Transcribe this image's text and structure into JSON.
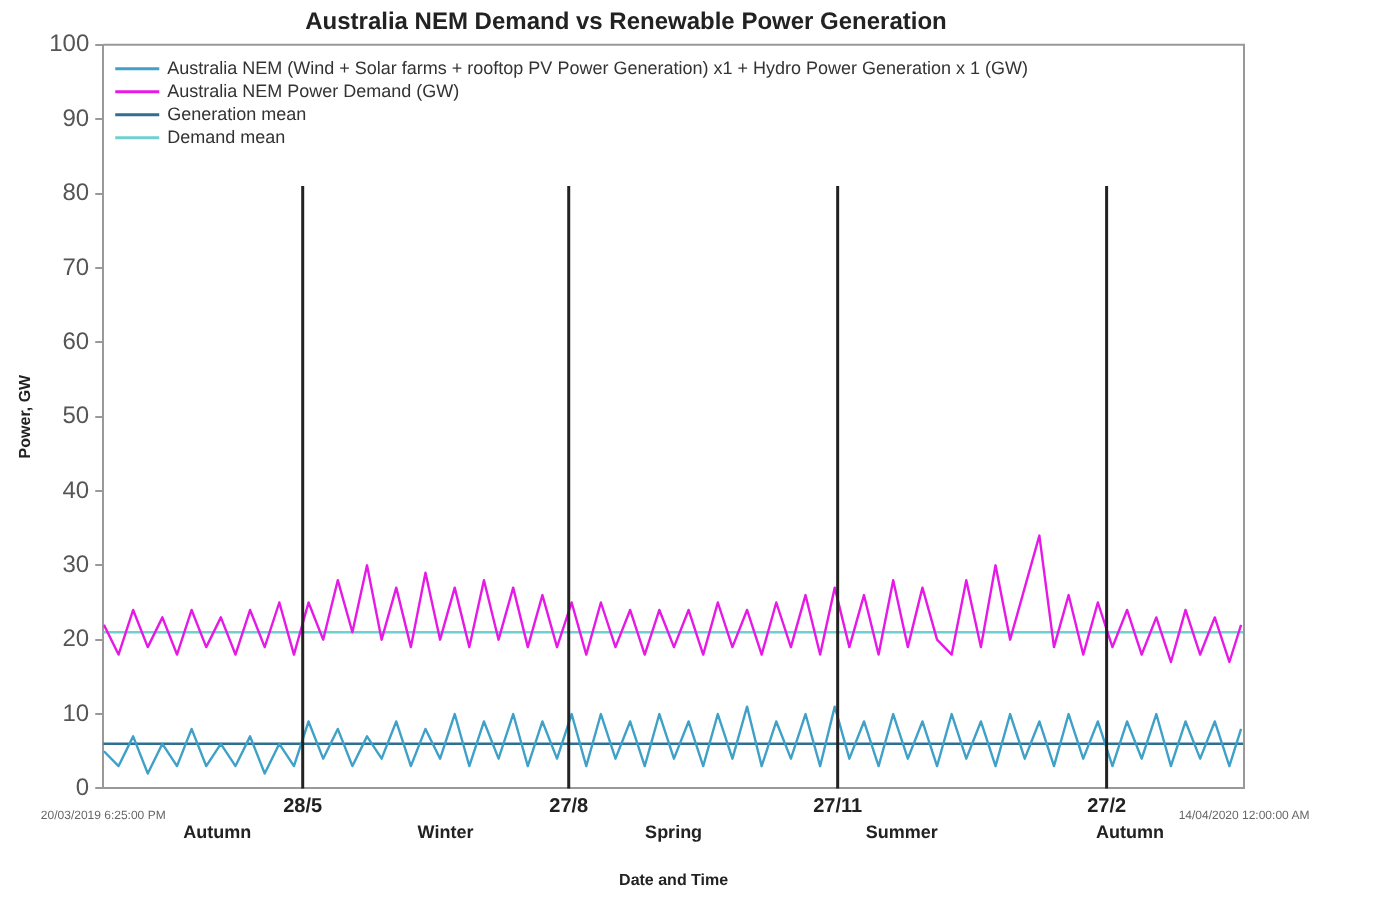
{
  "chart_data": {
    "type": "line",
    "title": "Australia NEM Demand vs Renewable Power Generation",
    "xlabel": "Date and Time",
    "ylabel": "Power, GW",
    "x": [
      "2019-03-21",
      "2019-03-26",
      "2019-03-31",
      "2019-04-05",
      "2019-04-10",
      "2019-04-15",
      "2019-04-20",
      "2019-04-25",
      "2019-04-30",
      "2019-05-05",
      "2019-05-10",
      "2019-05-15",
      "2019-05-20",
      "2019-05-25",
      "2019-05-30",
      "2019-06-04",
      "2019-06-09",
      "2019-06-14",
      "2019-06-19",
      "2019-06-24",
      "2019-06-29",
      "2019-07-04",
      "2019-07-09",
      "2019-07-14",
      "2019-07-19",
      "2019-07-24",
      "2019-07-29",
      "2019-08-03",
      "2019-08-08",
      "2019-08-13",
      "2019-08-18",
      "2019-08-23",
      "2019-08-28",
      "2019-09-02",
      "2019-09-07",
      "2019-09-12",
      "2019-09-17",
      "2019-09-22",
      "2019-09-27",
      "2019-10-02",
      "2019-10-07",
      "2019-10-12",
      "2019-10-17",
      "2019-10-22",
      "2019-10-27",
      "2019-11-01",
      "2019-11-06",
      "2019-11-11",
      "2019-11-16",
      "2019-11-21",
      "2019-11-26",
      "2019-12-01",
      "2019-12-06",
      "2019-12-11",
      "2019-12-16",
      "2019-12-21",
      "2019-12-26",
      "2019-12-31",
      "2020-01-05",
      "2020-01-10",
      "2020-01-15",
      "2020-01-20",
      "2020-01-25",
      "2020-01-30",
      "2020-02-04",
      "2020-02-09",
      "2020-02-14",
      "2020-02-19",
      "2020-02-24",
      "2020-02-29",
      "2020-03-05",
      "2020-03-10",
      "2020-03-15",
      "2020-03-20",
      "2020-03-25",
      "2020-03-30",
      "2020-04-04",
      "2020-04-09",
      "2020-04-13"
    ],
    "series": [
      {
        "name": "Australia NEM (Wind + Solar farms + rooftop PV Power Generation) x1 + Hydro Power Generation x 1 (GW)",
        "color": "#3fa0c8",
        "values": [
          5,
          3,
          7,
          2,
          6,
          3,
          8,
          3,
          6,
          3,
          7,
          2,
          6,
          3,
          9,
          4,
          8,
          3,
          7,
          4,
          9,
          3,
          8,
          4,
          10,
          3,
          9,
          4,
          10,
          3,
          9,
          4,
          10,
          3,
          10,
          4,
          9,
          3,
          10,
          4,
          9,
          3,
          10,
          4,
          11,
          3,
          9,
          4,
          10,
          3,
          11,
          4,
          9,
          3,
          10,
          4,
          9,
          3,
          10,
          4,
          9,
          3,
          10,
          4,
          9,
          3,
          10,
          4,
          9,
          3,
          9,
          4,
          10,
          3,
          9,
          4,
          9,
          3,
          8
        ]
      },
      {
        "name": "Australia NEM Power Demand (GW)",
        "color": "#e619e6",
        "values": [
          22,
          18,
          24,
          19,
          23,
          18,
          24,
          19,
          23,
          18,
          24,
          19,
          25,
          18,
          25,
          20,
          28,
          21,
          30,
          20,
          27,
          19,
          29,
          20,
          27,
          19,
          28,
          20,
          27,
          19,
          26,
          19,
          25,
          18,
          25,
          19,
          24,
          18,
          24,
          19,
          24,
          18,
          25,
          19,
          24,
          18,
          25,
          19,
          26,
          18,
          27,
          19,
          26,
          18,
          28,
          19,
          27,
          20,
          18,
          28,
          19,
          30,
          20,
          27,
          34,
          19,
          26,
          18,
          25,
          19,
          24,
          18,
          23,
          17,
          24,
          18,
          23,
          17,
          22
        ]
      },
      {
        "name": "Generation mean",
        "color": "#2f6f8f",
        "x": [
          "2019-03-20T18:25",
          "2020-04-14T00:00"
        ],
        "values": [
          6,
          6
        ]
      },
      {
        "name": "Demand mean",
        "color": "#6fd0d0",
        "x": [
          "2019-03-20T18:25",
          "2020-04-14T00:00"
        ],
        "values": [
          21,
          21
        ]
      }
    ],
    "xlim": [
      "2019-03-20T18:25",
      "2020-04-14T00:00"
    ],
    "xticks": [
      {
        "value": "2019-03-20T18:25",
        "label": "20/03/2019 6:25:00 PM"
      },
      {
        "value": "2020-04-14T00:00",
        "label": "14/04/2020 12:00:00 AM"
      }
    ],
    "ylim": [
      0,
      100
    ],
    "yticks": [
      0,
      10,
      20,
      30,
      40,
      50,
      60,
      70,
      80,
      90,
      100
    ],
    "ref_lines": [
      {
        "axis": "x",
        "value": "2019-05-28",
        "label": "28/5",
        "color": "#222222"
      },
      {
        "axis": "x",
        "value": "2019-08-27",
        "label": "27/8",
        "color": "#222222"
      },
      {
        "axis": "x",
        "value": "2019-11-27",
        "label": "27/11",
        "color": "#222222"
      },
      {
        "axis": "x",
        "value": "2020-02-27",
        "label": "27/2",
        "color": "#222222"
      }
    ],
    "annotations": [
      "Autumn",
      "Winter",
      "Spring",
      "Summer",
      "Autumn"
    ],
    "grid": false,
    "legend": "top left",
    "marker": "none",
    "line_style": "solid"
  }
}
